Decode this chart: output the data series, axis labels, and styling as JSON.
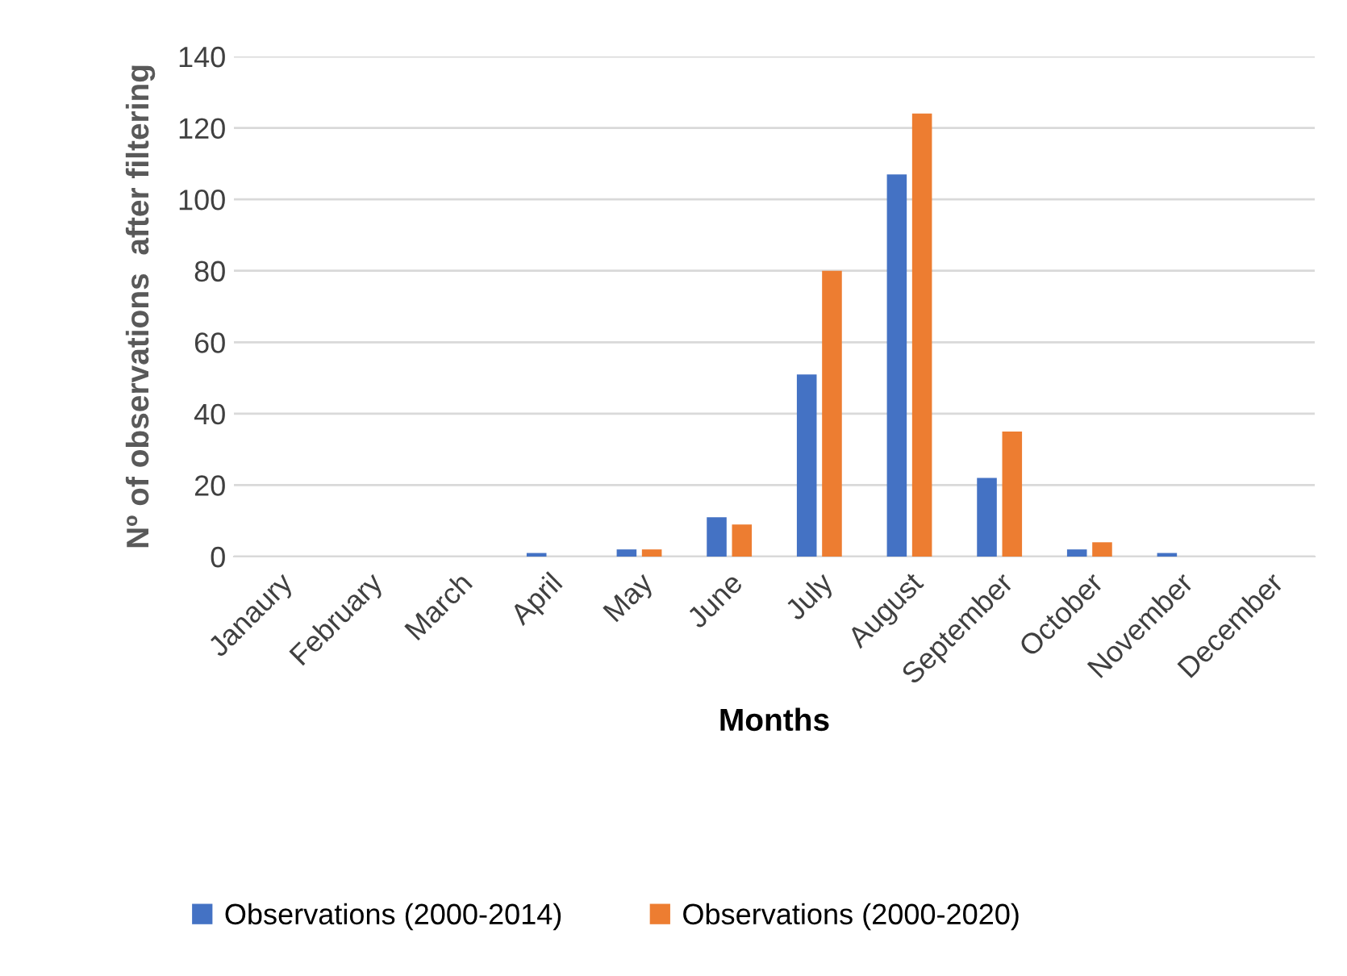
{
  "chart_data": {
    "type": "bar",
    "xlabel": "Months",
    "ylabel": "Nº of observations  after filtering",
    "categories": [
      "Janaury",
      "February",
      "March",
      "April",
      "May",
      "June",
      "July",
      "August",
      "September",
      "October",
      "November",
      "December"
    ],
    "series": [
      {
        "name": "Observations (2000-2014)",
        "color": "#4472c4",
        "values": [
          0,
          0,
          0,
          1,
          2,
          11,
          51,
          107,
          22,
          2,
          1,
          0
        ]
      },
      {
        "name": "Observations (2000-2020)",
        "color": "#ed7d31",
        "values": [
          0,
          0,
          0,
          0,
          2,
          9,
          80,
          124,
          35,
          4,
          0,
          0
        ]
      }
    ],
    "ylim": [
      0,
      140
    ],
    "yticks": [
      0,
      20,
      40,
      60,
      80,
      100,
      120,
      140
    ],
    "grid": "y",
    "legend": "bottom"
  }
}
